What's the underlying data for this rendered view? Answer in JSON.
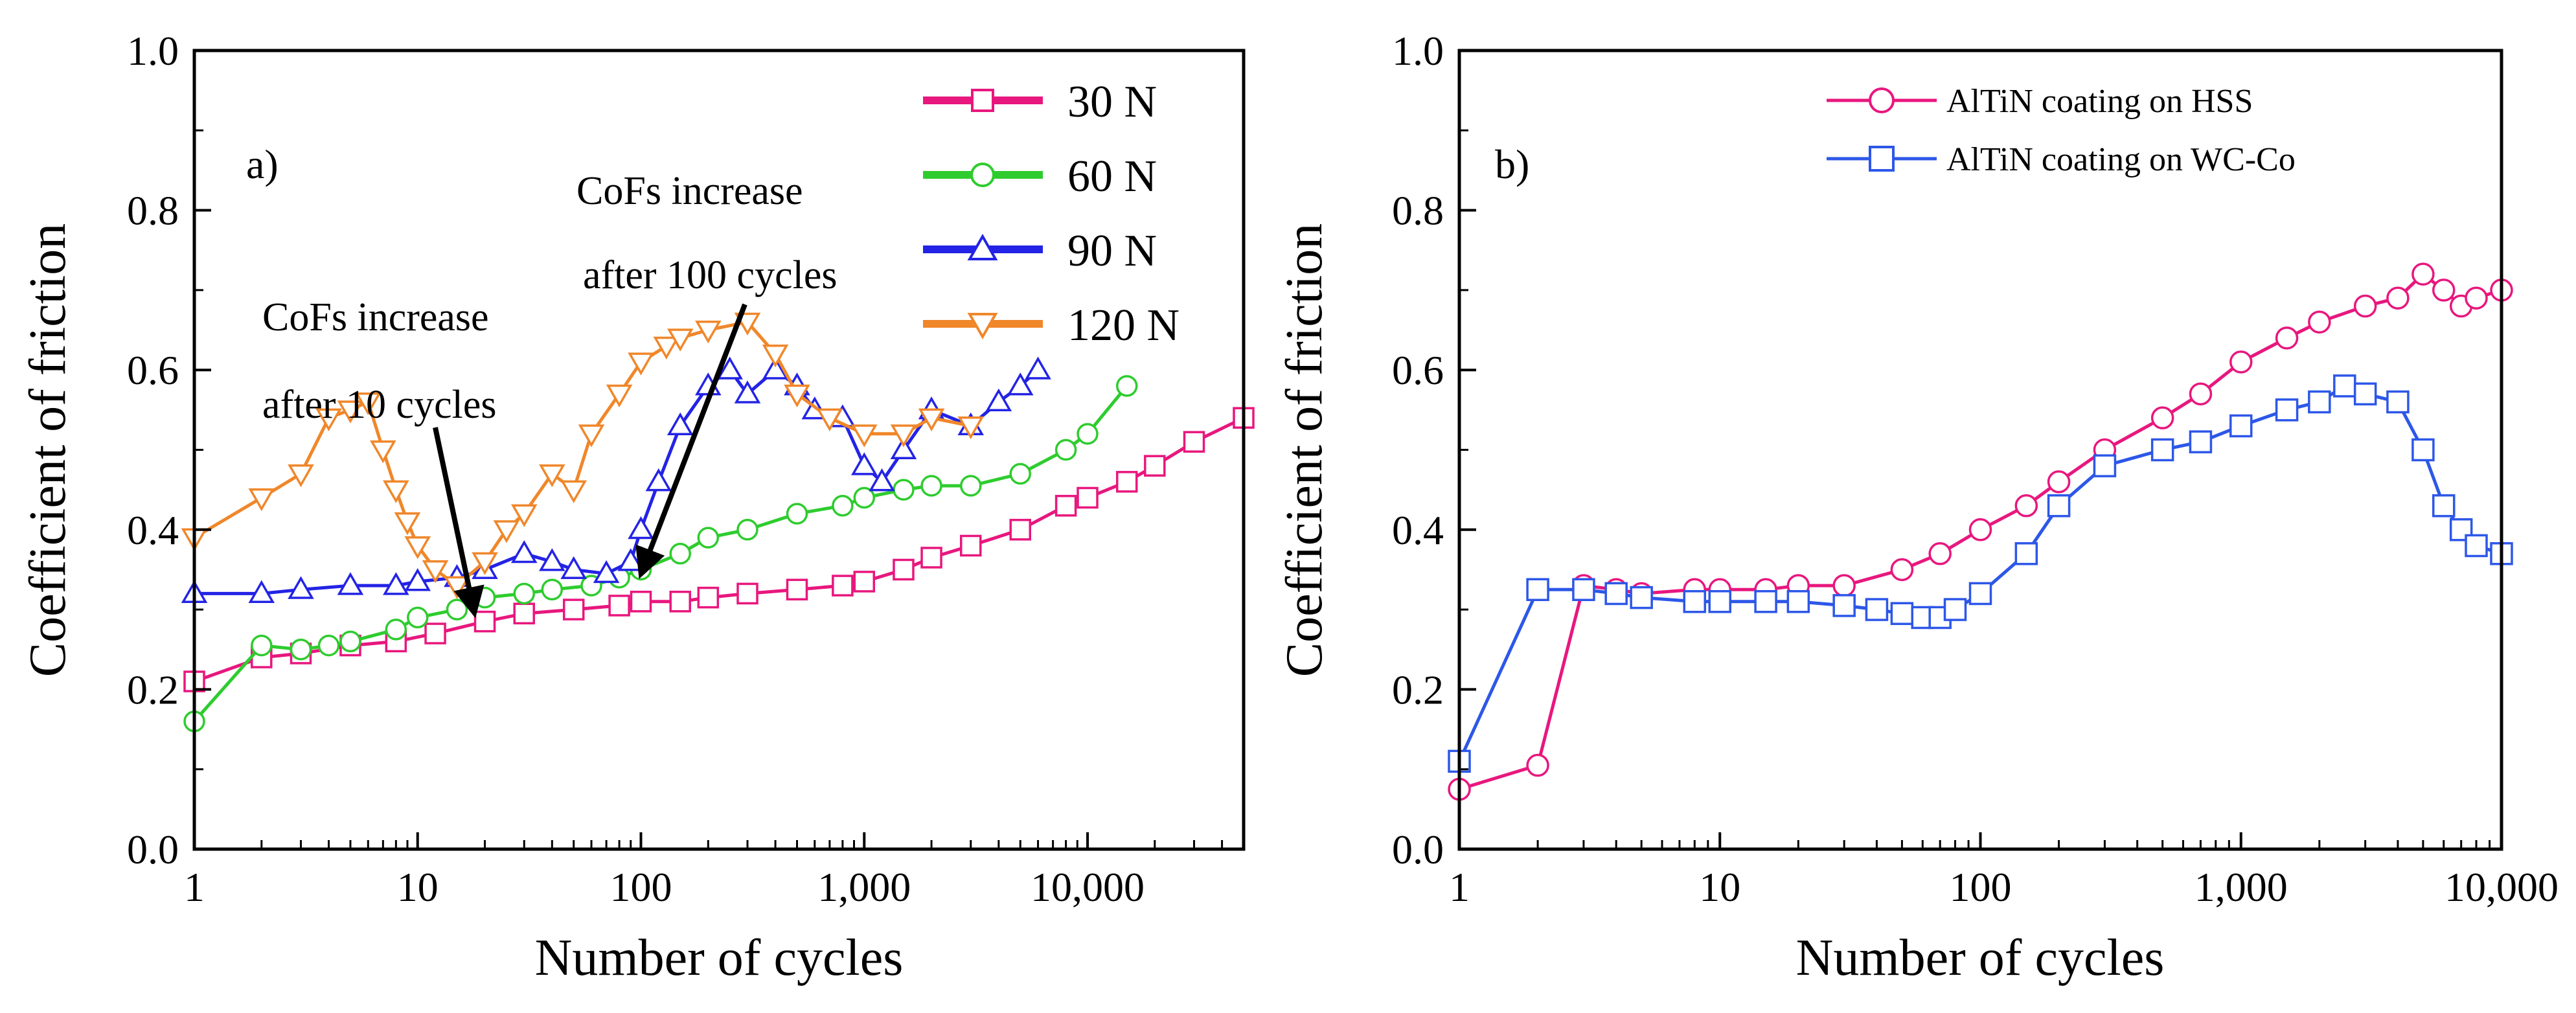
{
  "chart_data": [
    {
      "type": "line",
      "panel_label": "a)",
      "xlabel": "Number of cycles",
      "ylabel": "Coefficient of friction",
      "xscale": "log",
      "xlim": [
        1,
        50000
      ],
      "ylim": [
        0.0,
        1.0
      ],
      "x_ticks": [
        1,
        10,
        100,
        1000,
        10000
      ],
      "x_tick_labels": [
        "1",
        "10",
        "100",
        "1,000",
        "10,000"
      ],
      "y_ticks": [
        0.0,
        0.2,
        0.4,
        0.6,
        0.8,
        1.0
      ],
      "y_tick_labels": [
        "0.0",
        "0.2",
        "0.4",
        "0.6",
        "0.8",
        "1.0"
      ],
      "legend_position": "top-right",
      "series": [
        {
          "name": "30 N",
          "color": "#e8177e",
          "marker": "square",
          "x": [
            1,
            2,
            3,
            5,
            8,
            12,
            20,
            30,
            50,
            80,
            100,
            150,
            200,
            300,
            500,
            800,
            1000,
            1500,
            2000,
            3000,
            5000,
            8000,
            10000,
            15000,
            20000,
            30000,
            50000
          ],
          "y": [
            0.21,
            0.24,
            0.245,
            0.255,
            0.26,
            0.27,
            0.285,
            0.295,
            0.3,
            0.305,
            0.31,
            0.31,
            0.315,
            0.32,
            0.325,
            0.33,
            0.335,
            0.35,
            0.365,
            0.38,
            0.4,
            0.43,
            0.44,
            0.46,
            0.48,
            0.51,
            0.54
          ]
        },
        {
          "name": "60 N",
          "color": "#2ecc2e",
          "marker": "circle",
          "x": [
            1,
            2,
            3,
            4,
            5,
            8,
            10,
            15,
            20,
            30,
            40,
            60,
            80,
            100,
            150,
            200,
            300,
            500,
            800,
            1000,
            1500,
            2000,
            3000,
            5000,
            8000,
            10000,
            15000
          ],
          "y": [
            0.16,
            0.255,
            0.25,
            0.255,
            0.26,
            0.275,
            0.29,
            0.3,
            0.315,
            0.32,
            0.325,
            0.33,
            0.34,
            0.35,
            0.37,
            0.39,
            0.4,
            0.42,
            0.43,
            0.44,
            0.45,
            0.455,
            0.455,
            0.47,
            0.5,
            0.52,
            0.58
          ]
        },
        {
          "name": "90 N",
          "color": "#2323e6",
          "marker": "triangle-up",
          "x": [
            1,
            2,
            3,
            5,
            8,
            10,
            15,
            20,
            30,
            40,
            50,
            70,
            90,
            100,
            120,
            150,
            200,
            250,
            300,
            400,
            500,
            600,
            800,
            1000,
            1200,
            1500,
            2000,
            3000,
            4000,
            5000,
            6000
          ],
          "y": [
            0.32,
            0.32,
            0.325,
            0.33,
            0.33,
            0.335,
            0.34,
            0.35,
            0.37,
            0.36,
            0.35,
            0.345,
            0.36,
            0.4,
            0.46,
            0.53,
            0.58,
            0.6,
            0.57,
            0.6,
            0.58,
            0.55,
            0.54,
            0.48,
            0.46,
            0.5,
            0.55,
            0.53,
            0.56,
            0.58,
            0.6
          ]
        },
        {
          "name": "120 N",
          "color": "#f0872a",
          "marker": "triangle-down",
          "x": [
            1,
            2,
            3,
            4,
            5,
            6,
            7,
            8,
            9,
            10,
            12,
            15,
            20,
            25,
            30,
            40,
            50,
            60,
            80,
            100,
            130,
            150,
            200,
            300,
            400,
            500,
            700,
            1000,
            1500,
            2000,
            3000
          ],
          "y": [
            0.39,
            0.44,
            0.47,
            0.54,
            0.55,
            0.56,
            0.5,
            0.45,
            0.41,
            0.38,
            0.35,
            0.33,
            0.36,
            0.4,
            0.42,
            0.47,
            0.45,
            0.52,
            0.57,
            0.61,
            0.63,
            0.64,
            0.65,
            0.66,
            0.62,
            0.57,
            0.54,
            0.52,
            0.52,
            0.54,
            0.53
          ]
        }
      ],
      "annotations": [
        {
          "text": "CoFs    increase",
          "line": 1
        },
        {
          "text": "after 100 cycles",
          "line": 2
        },
        {
          "text": "CoFs  increase",
          "line": 1
        },
        {
          "text": "after 10 cycles",
          "line": 2
        }
      ]
    },
    {
      "type": "line",
      "panel_label": "b)",
      "xlabel": "Number of cycles",
      "ylabel": "Coefficient of friction",
      "xscale": "log",
      "xlim": [
        1,
        10000
      ],
      "ylim": [
        0.0,
        1.0
      ],
      "x_ticks": [
        1,
        10,
        100,
        1000,
        10000
      ],
      "x_tick_labels": [
        "1",
        "10",
        "100",
        "1,000",
        "10,000"
      ],
      "y_ticks": [
        0.0,
        0.2,
        0.4,
        0.6,
        0.8,
        1.0
      ],
      "y_tick_labels": [
        "0.0",
        "0.2",
        "0.4",
        "0.6",
        "0.8",
        "1.0"
      ],
      "legend_position": "top-right",
      "series": [
        {
          "name": "AlTiN coating on HSS",
          "color": "#e8177e",
          "marker": "circle",
          "x": [
            1,
            2,
            3,
            4,
            5,
            8,
            10,
            15,
            20,
            30,
            50,
            70,
            100,
            150,
            200,
            300,
            500,
            700,
            1000,
            1500,
            2000,
            3000,
            4000,
            5000,
            6000,
            7000,
            8000,
            10000
          ],
          "y": [
            0.075,
            0.105,
            0.33,
            0.325,
            0.32,
            0.325,
            0.325,
            0.325,
            0.33,
            0.33,
            0.35,
            0.37,
            0.4,
            0.43,
            0.46,
            0.5,
            0.54,
            0.57,
            0.61,
            0.64,
            0.66,
            0.68,
            0.69,
            0.72,
            0.7,
            0.68,
            0.69,
            0.7
          ]
        },
        {
          "name": "AlTiN coating on WC-Co",
          "color": "#2d57e8",
          "marker": "square",
          "x": [
            1,
            2,
            3,
            4,
            5,
            8,
            10,
            15,
            20,
            30,
            40,
            50,
            60,
            70,
            80,
            100,
            150,
            200,
            300,
            500,
            700,
            1000,
            1500,
            2000,
            2500,
            3000,
            4000,
            5000,
            6000,
            7000,
            8000,
            10000
          ],
          "y": [
            0.11,
            0.325,
            0.325,
            0.32,
            0.315,
            0.31,
            0.31,
            0.31,
            0.31,
            0.305,
            0.3,
            0.295,
            0.29,
            0.29,
            0.3,
            0.32,
            0.37,
            0.43,
            0.48,
            0.5,
            0.51,
            0.53,
            0.55,
            0.56,
            0.58,
            0.57,
            0.56,
            0.5,
            0.43,
            0.4,
            0.38,
            0.37
          ]
        }
      ]
    }
  ]
}
